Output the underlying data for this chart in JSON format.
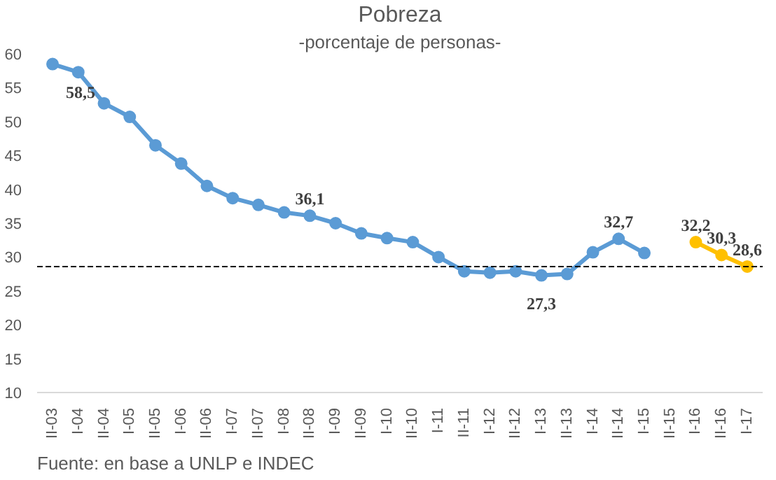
{
  "chart_data": {
    "type": "line",
    "title": "Pobreza",
    "subtitle": "-porcentaje de personas-",
    "categories": [
      "II-03",
      "I-04",
      "II-04",
      "I-05",
      "II-05",
      "I-06",
      "II-06",
      "I-07",
      "II-07",
      "I-08",
      "II-08",
      "I-09",
      "II-09",
      "I-10",
      "II-10",
      "I-11",
      "II-11",
      "I-12",
      "II-12",
      "I-13",
      "II-13",
      "I-14",
      "II-14",
      "I-15",
      "II-15",
      "I-16",
      "II-16",
      "I-17"
    ],
    "series": [
      {
        "color": "#5b9bd5",
        "values": [
          58.5,
          57.3,
          52.7,
          50.7,
          46.5,
          43.8,
          40.5,
          38.7,
          37.7,
          36.6,
          36.1,
          35.0,
          33.5,
          32.8,
          32.2,
          30.0,
          27.9,
          27.7,
          27.9,
          27.3,
          27.5,
          30.7,
          32.7,
          30.6,
          null,
          null,
          null,
          null
        ],
        "value_labels": [
          "58,5",
          null,
          null,
          null,
          null,
          null,
          null,
          null,
          null,
          null,
          "36,1",
          null,
          null,
          null,
          null,
          null,
          null,
          null,
          null,
          "27,3",
          null,
          null,
          "32,7",
          null,
          null,
          null,
          null,
          null
        ]
      },
      {
        "color": "#ffc000",
        "values": [
          null,
          null,
          null,
          null,
          null,
          null,
          null,
          null,
          null,
          null,
          null,
          null,
          null,
          null,
          null,
          null,
          null,
          null,
          null,
          null,
          null,
          null,
          null,
          null,
          null,
          32.2,
          30.3,
          28.6
        ],
        "value_labels": [
          null,
          null,
          null,
          null,
          null,
          null,
          null,
          null,
          null,
          null,
          null,
          null,
          null,
          null,
          null,
          null,
          null,
          null,
          null,
          null,
          null,
          null,
          null,
          null,
          null,
          "32,2",
          "30,3",
          "28,6"
        ]
      }
    ],
    "ylim": [
      10,
      60
    ],
    "yticks": [
      10,
      15,
      20,
      25,
      30,
      35,
      40,
      45,
      50,
      55,
      60
    ],
    "grid": false,
    "marker": "circle",
    "line_style": "solid",
    "ref_lines": [
      {
        "axis": "y",
        "value": 28.6,
        "label": null,
        "color": "#000000",
        "line_style": "dashed"
      }
    ],
    "annotations": [
      "Fuente: en base a UNLP e INDEC"
    ]
  }
}
